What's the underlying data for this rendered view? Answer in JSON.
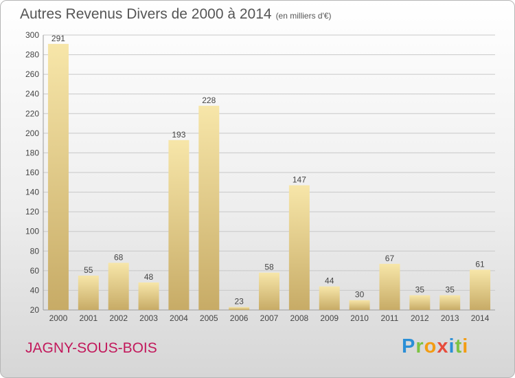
{
  "header": {
    "title": "Autres Revenus Divers de 2000 à 2014",
    "unit": "(en milliers d'€)"
  },
  "footer": {
    "commune": "JAGNY-SOUS-BOIS",
    "brand_letters": [
      "P",
      "r",
      "o",
      "x",
      "i",
      "t",
      "i"
    ]
  },
  "colors": {
    "bar_light": "#f6e4a6",
    "bar_dark": "#c9ae6a",
    "grid": "#c8c8c8",
    "text": "#444444",
    "commune": "#c2185b"
  },
  "chart_data": {
    "type": "bar",
    "title": "Autres Revenus Divers de 2000 à 2014",
    "subtitle": "(en milliers d'€)",
    "categories": [
      "2000",
      "2001",
      "2002",
      "2003",
      "2004",
      "2005",
      "2006",
      "2007",
      "2008",
      "2009",
      "2010",
      "2011",
      "2012",
      "2013",
      "2014"
    ],
    "values": [
      291,
      55,
      68,
      48,
      193,
      228,
      23,
      58,
      147,
      44,
      30,
      67,
      35,
      35,
      61
    ],
    "ylim": [
      20,
      300
    ],
    "yticks": [
      20,
      40,
      60,
      80,
      100,
      120,
      140,
      160,
      180,
      200,
      220,
      240,
      260,
      280,
      300
    ],
    "grid": true,
    "data_labels": true
  }
}
